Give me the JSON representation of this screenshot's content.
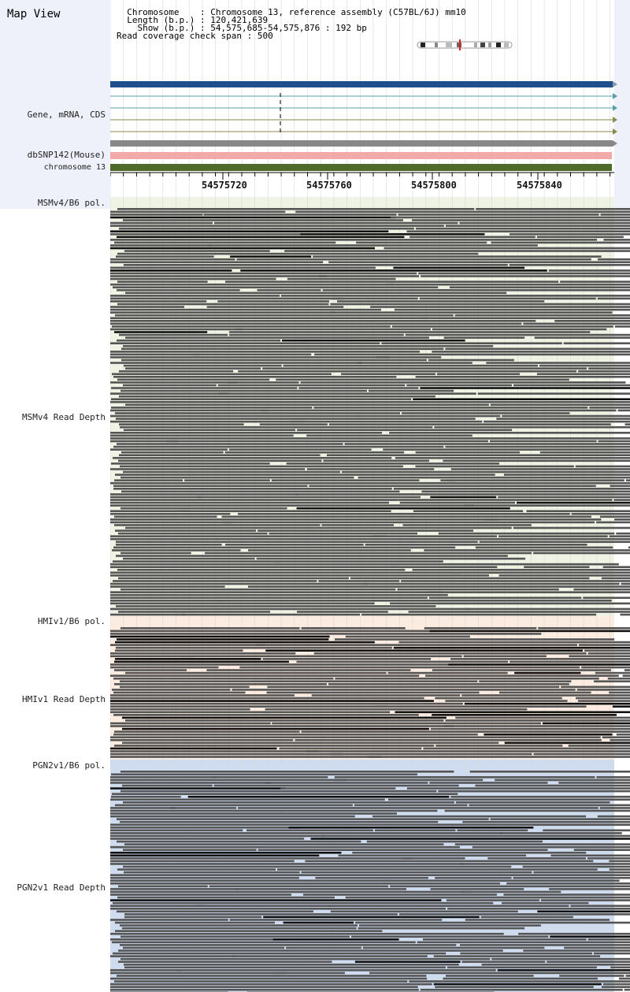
{
  "title": "Map View",
  "info": {
    "chromosome_key": "Chromosome",
    "chromosome_val": "Chromosome 13, reference assembly (C57BL/6J) mm10",
    "length_key": "Length (b.p.)",
    "length_val": "120,421,639",
    "show_key": "Show (b.p.)",
    "show_val": "54,575,685-54,575,876 : 192 bp",
    "coverage_key": "Read coverage check span",
    "coverage_val": "500"
  },
  "tracks": {
    "gene": "Gene, mRNA, CDS",
    "snp": "dbSNP142(Mouse)",
    "chromosome": "chromosome 13"
  },
  "ruler": {
    "ticks": [
      "54575720",
      "54575760",
      "54575800",
      "54575840"
    ]
  },
  "sections": [
    {
      "pol_label": "MSMv4/B6 pol.",
      "depth_label": "MSMv4 Read Depth",
      "color": "#eef3e4"
    },
    {
      "pol_label": "HMIv1/B6 pol.",
      "depth_label": "HMIv1 Read Depth",
      "color": "#fcebe0"
    },
    {
      "pol_label": "PGN2v1/B6 pol.",
      "depth_label": "PGN2v1 Read Depth",
      "color": "#cfdcef"
    }
  ],
  "colors": {
    "gene_bar": "#1f4e8c",
    "mrna_line": "#5aa0a8",
    "cds_line": "#8a8a4a",
    "snp_bar": "#f4a9a9",
    "chromosome_bar": "#4f6b2a",
    "read": "#555555",
    "read_dark": "#111111"
  }
}
